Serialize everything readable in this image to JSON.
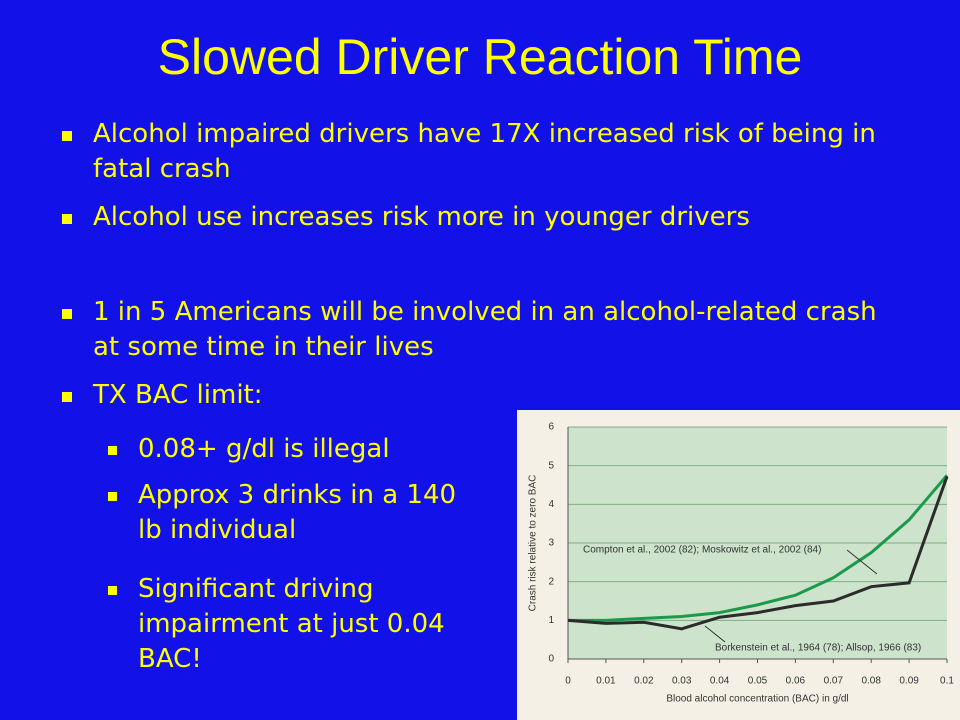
{
  "title": "Slowed Driver Reaction Time",
  "bullets": [
    "Alcohol impaired drivers have 17X increased risk of being in fatal crash",
    "Alcohol use increases risk more in younger drivers",
    "1 in 5 Americans will be involved in an alcohol-related crash at some time in their lives",
    "TX BAC limit:"
  ],
  "sub_bullets": [
    "0.08+ g/dl is illegal",
    "Approx 3 drinks in a 140 lb individual",
    "Significant driving impairment at just 0.04 BAC!"
  ],
  "chart_data": {
    "type": "line",
    "x_label": "Blood alcohol concentration (BAC) in g/dl",
    "y_label": "Crash risk relative to zero BAC",
    "x": [
      0,
      0.01,
      0.02,
      0.03,
      0.04,
      0.05,
      0.06,
      0.07,
      0.08,
      0.09,
      0.1
    ],
    "series": [
      {
        "name": "Compton et al., 2002 (82); Moskowitz et al., 2002 (84)",
        "color": "#1a9a4a",
        "values": [
          1,
          1.0,
          1.05,
          1.1,
          1.2,
          1.4,
          1.65,
          2.1,
          2.75,
          3.6,
          4.75
        ]
      },
      {
        "name": "Borkenstein et al., 1964 (78); Allsop, 1966 (83)",
        "color": "#2b2b2b",
        "values": [
          1,
          0.92,
          0.95,
          0.78,
          1.08,
          1.2,
          1.38,
          1.5,
          1.87,
          1.97,
          4.72
        ]
      }
    ],
    "xlim": [
      0,
      0.1
    ],
    "xticks": [
      0,
      0.01,
      0.02,
      0.03,
      0.04,
      0.05,
      0.06,
      0.07,
      0.08,
      0.09,
      0.1
    ],
    "ylim": [
      0,
      6
    ],
    "yticks": [
      0,
      1,
      2,
      3,
      4,
      5,
      6
    ],
    "grid": true
  }
}
